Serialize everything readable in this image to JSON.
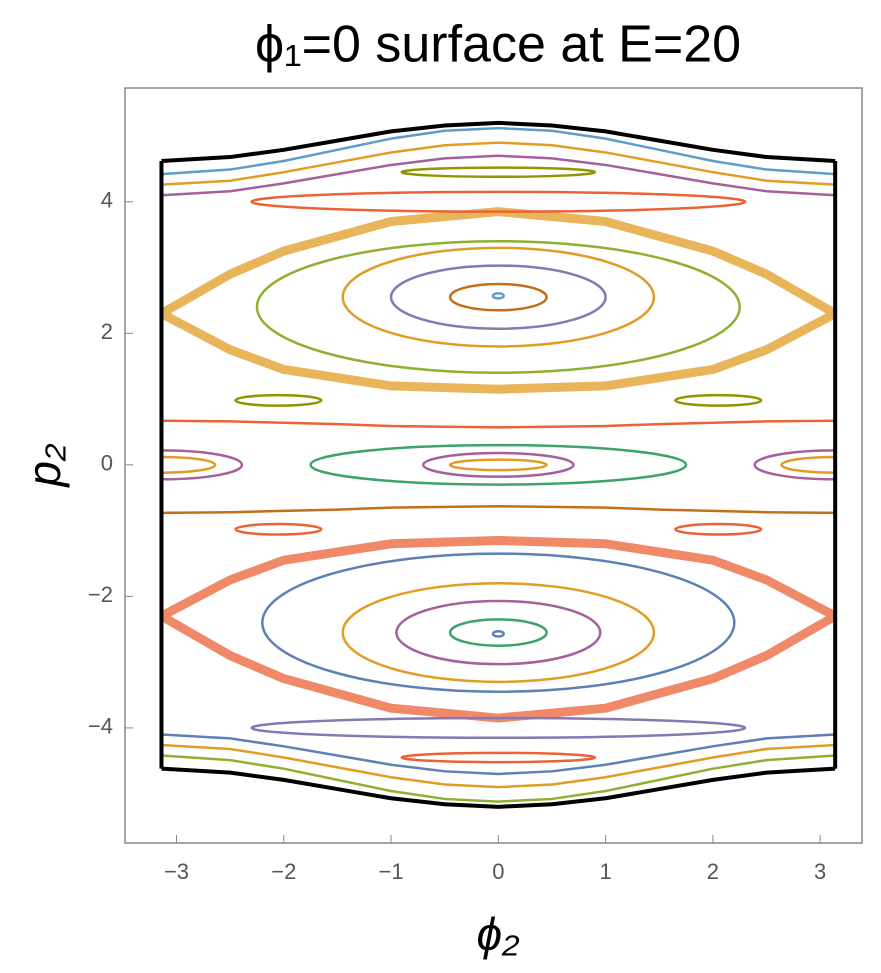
{
  "chart_data": {
    "type": "line",
    "title": "ϕ₁=0 surface at E=20",
    "xlabel": "ϕ₂",
    "ylabel": "p₂",
    "xlim": [
      -3.48,
      3.39
    ],
    "ylim": [
      -5.75,
      5.73
    ],
    "xticks": [
      {
        "value": -3,
        "label": "−3"
      },
      {
        "value": -2,
        "label": "−2"
      },
      {
        "value": -1,
        "label": "−1"
      },
      0,
      1,
      2,
      3
    ],
    "yticks": [
      {
        "value": -4,
        "label": "−4"
      },
      {
        "value": -2,
        "label": "−2"
      },
      0,
      2,
      4
    ],
    "boundary": {
      "color": "#000000",
      "upper": [
        4.62,
        4.68,
        4.79,
        4.93,
        5.07,
        5.16,
        5.2,
        5.16,
        5.07,
        4.93,
        4.79,
        4.68,
        4.62
      ],
      "lower": [
        -4.62,
        -4.68,
        -4.79,
        -4.93,
        -5.07,
        -5.16,
        -5.2,
        -5.16,
        -5.07,
        -4.93,
        -4.79,
        -4.68,
        -4.62
      ]
    },
    "curves": {
      "x": [
        -3.14,
        -2.5,
        -2,
        -1.5,
        -1,
        -0.5,
        0,
        0.5,
        1,
        1.5,
        2,
        2.5,
        3.14
      ],
      "series": [
        {
          "color": "#5D9EC7",
          "values": [
            4.42,
            4.49,
            4.62,
            4.79,
            4.96,
            5.08,
            5.12,
            5.08,
            4.96,
            4.79,
            4.62,
            4.49,
            4.42
          ]
        },
        {
          "color": "#E19C24",
          "values": [
            4.26,
            4.32,
            4.45,
            4.6,
            4.75,
            4.86,
            4.9,
            4.86,
            4.75,
            4.6,
            4.45,
            4.32,
            4.26
          ]
        },
        {
          "color": "#A5609D",
          "values": [
            4.1,
            4.16,
            4.28,
            4.42,
            4.56,
            4.66,
            4.7,
            4.66,
            4.56,
            4.42,
            4.28,
            4.16,
            4.1
          ]
        },
        {
          "color": "#8FB032",
          "values": [
            -4.42,
            -4.49,
            -4.62,
            -4.79,
            -4.96,
            -5.08,
            -5.12,
            -5.08,
            -4.96,
            -4.79,
            -4.62,
            -4.49,
            -4.42
          ]
        },
        {
          "color": "#E19C24",
          "values": [
            -4.26,
            -4.32,
            -4.45,
            -4.6,
            -4.75,
            -4.86,
            -4.9,
            -4.86,
            -4.75,
            -4.6,
            -4.45,
            -4.32,
            -4.26
          ]
        },
        {
          "color": "#5E81B5",
          "values": [
            -4.1,
            -4.16,
            -4.28,
            -4.42,
            -4.56,
            -4.66,
            -4.7,
            -4.66,
            -4.56,
            -4.42,
            -4.28,
            -4.16,
            -4.1
          ]
        },
        {
          "color": "#EB6235",
          "values": [
            0.67,
            0.66,
            0.64,
            0.62,
            0.59,
            0.58,
            0.57,
            0.58,
            0.59,
            0.62,
            0.64,
            0.66,
            0.67
          ]
        },
        {
          "color": "#C56E1A",
          "values": [
            -0.73,
            -0.72,
            -0.7,
            -0.68,
            -0.65,
            -0.64,
            -0.63,
            -0.64,
            -0.65,
            -0.68,
            -0.7,
            -0.72,
            -0.73
          ]
        }
      ]
    },
    "bands": [
      {
        "color": "#E19C24",
        "x": [
          -3.14,
          -2.5,
          -2,
          -1,
          0,
          1,
          2,
          2.5,
          3.14,
          2.5,
          2,
          1,
          0,
          -1,
          -2,
          -2.5,
          -3.14
        ],
        "y": [
          2.3,
          2.9,
          3.25,
          3.7,
          3.85,
          3.7,
          3.25,
          2.9,
          2.3,
          1.75,
          1.45,
          1.2,
          1.15,
          1.2,
          1.45,
          1.75,
          2.3
        ]
      },
      {
        "color": "#EB6235",
        "x": [
          -3.14,
          -2.5,
          -2,
          -1,
          0,
          1,
          2,
          2.5,
          3.14,
          2.5,
          2,
          1,
          0,
          -1,
          -2,
          -2.5,
          -3.14
        ],
        "y": [
          -2.3,
          -2.9,
          -3.25,
          -3.7,
          -3.85,
          -3.7,
          -3.25,
          -2.9,
          -2.3,
          -1.75,
          -1.45,
          -1.2,
          -1.15,
          -1.2,
          -1.45,
          -1.75,
          -2.3
        ]
      }
    ],
    "islands": [
      {
        "color": "#5D9EC7",
        "cx": 0,
        "cy": 2.57,
        "rx": 0.05,
        "ry": 0.04
      },
      {
        "color": "#C56E1A",
        "cx": 0,
        "cy": 2.55,
        "rx": 0.45,
        "ry": 0.2
      },
      {
        "color": "#8778B3",
        "cx": 0,
        "cy": 2.55,
        "rx": 1.0,
        "ry": 0.48
      },
      {
        "color": "#E19C24",
        "cx": 0,
        "cy": 2.55,
        "rx": 1.45,
        "ry": 0.75
      },
      {
        "color": "#8FB032",
        "cx": 0,
        "cy": 2.4,
        "rx": 2.25,
        "ry": 1.0
      },
      {
        "color": "#5E81B5",
        "cx": 0,
        "cy": -2.57,
        "rx": 0.05,
        "ry": 0.04
      },
      {
        "color": "#3BA36B",
        "cx": 0,
        "cy": -2.55,
        "rx": 0.45,
        "ry": 0.2
      },
      {
        "color": "#A5609D",
        "cx": 0,
        "cy": -2.55,
        "rx": 0.95,
        "ry": 0.48
      },
      {
        "color": "#E19C24",
        "cx": 0,
        "cy": -2.55,
        "rx": 1.45,
        "ry": 0.75
      },
      {
        "color": "#5E81B5",
        "cx": 0,
        "cy": -2.4,
        "rx": 2.2,
        "ry": 1.05
      },
      {
        "color": "#A5609D",
        "cx": 0,
        "cy": 0,
        "rx": 0.7,
        "ry": 0.18
      },
      {
        "color": "#E19C24",
        "cx": 0,
        "cy": 0,
        "rx": 0.45,
        "ry": 0.08
      },
      {
        "color": "#3BA36B",
        "cx": 0,
        "cy": 0,
        "rx": 1.75,
        "ry": 0.3
      },
      {
        "color": "#E19C24",
        "cx": -3.14,
        "cy": 0,
        "rx": 0.5,
        "ry": 0.12
      },
      {
        "color": "#A5609D",
        "cx": -3.14,
        "cy": 0,
        "rx": 0.75,
        "ry": 0.22
      },
      {
        "color": "#E19C24",
        "cx": 3.14,
        "cy": 0,
        "rx": 0.5,
        "ry": 0.12
      },
      {
        "color": "#A5609D",
        "cx": 3.14,
        "cy": 0,
        "rx": 0.75,
        "ry": 0.22
      },
      {
        "color": "#929600",
        "cx": -2.05,
        "cy": 0.98,
        "rx": 0.4,
        "ry": 0.08
      },
      {
        "color": "#929600",
        "cx": 2.05,
        "cy": 0.98,
        "rx": 0.4,
        "ry": 0.08
      },
      {
        "color": "#EB6235",
        "cx": -2.05,
        "cy": -0.98,
        "rx": 0.4,
        "ry": 0.08
      },
      {
        "color": "#EB6235",
        "cx": 2.05,
        "cy": -0.98,
        "rx": 0.4,
        "ry": 0.08
      },
      {
        "color": "#EB6235",
        "cx": 0,
        "cy": 4.0,
        "rx": 2.3,
        "ry": 0.15
      },
      {
        "color": "#929600",
        "cx": 0,
        "cy": 4.45,
        "rx": 0.9,
        "ry": 0.07
      },
      {
        "color": "#8778B3",
        "cx": 0,
        "cy": -4.0,
        "rx": 2.3,
        "ry": 0.15
      },
      {
        "color": "#EB6235",
        "cx": 0,
        "cy": -4.45,
        "rx": 0.9,
        "ry": 0.07
      }
    ]
  }
}
